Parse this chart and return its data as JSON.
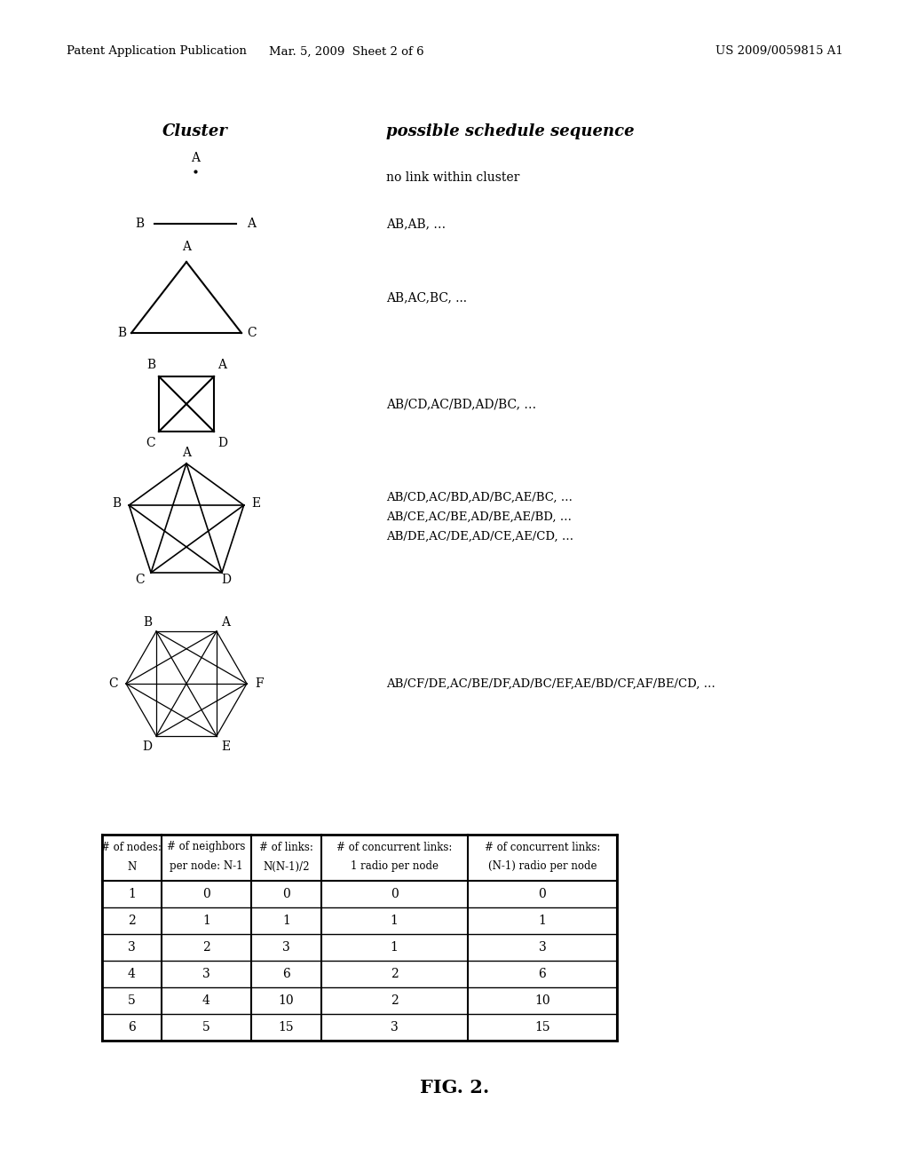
{
  "bg_color": "#ffffff",
  "header_left": "Patent Application Publication",
  "header_mid": "Mar. 5, 2009  Sheet 2 of 6",
  "header_right": "US 2009/0059815 A1",
  "col_header1": "Cluster",
  "col_header2": "possible schedule sequence",
  "row1_text": "no link within cluster",
  "row2_text": "AB,AB, …",
  "row3_text": "AB,AC,BC, ...",
  "row4_text": "AB/CD,AC/BD,AD/BC, …",
  "row5_text1": "AB/CD,AC/BD,AD/BC,AE/BC, …",
  "row5_text2": "AB/CE,AC/BE,AD/BE,AE/BD, …",
  "row5_text3": "AB/DE,AC/DE,AD/CE,AE/CD, …",
  "row6_text": "AB/CF/DE,AC/BE/DF,AD/BC/EF,AE/BD/CF,AF/BE/CD, …",
  "fig_caption": "FIG. 2.",
  "table_headers_line1": [
    "# of nodes:",
    "# of neighbors",
    "# of links:",
    "# of concurrent links:",
    "# of concurrent links:"
  ],
  "table_headers_line2": [
    "N",
    "per node: N-1",
    "N(N-1)/2",
    "1 radio per node",
    "(N-1) radio per node"
  ],
  "table_data": [
    [
      "1",
      "0",
      "0",
      "0",
      "0"
    ],
    [
      "2",
      "1",
      "1",
      "1",
      "1"
    ],
    [
      "3",
      "2",
      "3",
      "1",
      "3"
    ],
    [
      "4",
      "3",
      "6",
      "2",
      "6"
    ],
    [
      "5",
      "4",
      "10",
      "2",
      "10"
    ],
    [
      "6",
      "5",
      "15",
      "3",
      "15"
    ]
  ]
}
